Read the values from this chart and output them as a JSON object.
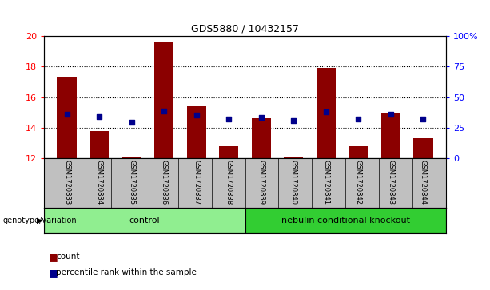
{
  "title": "GDS5880 / 10432157",
  "samples": [
    "GSM1720833",
    "GSM1720834",
    "GSM1720835",
    "GSM1720836",
    "GSM1720837",
    "GSM1720838",
    "GSM1720839",
    "GSM1720840",
    "GSM1720841",
    "GSM1720842",
    "GSM1720843",
    "GSM1720844"
  ],
  "bar_tops": [
    17.3,
    13.8,
    12.1,
    19.6,
    15.4,
    12.8,
    14.6,
    12.05,
    17.9,
    12.8,
    15.0,
    13.3
  ],
  "bar_base": 12.0,
  "percentile_values": [
    14.9,
    14.7,
    14.35,
    15.1,
    14.85,
    14.55,
    14.65,
    14.45,
    15.05,
    14.55,
    14.9,
    14.55
  ],
  "ylim_left": [
    12,
    20
  ],
  "ylim_right": [
    0,
    100
  ],
  "yticks_left": [
    12,
    14,
    16,
    18,
    20
  ],
  "yticks_right": [
    0,
    25,
    50,
    75,
    100
  ],
  "ytick_labels_right": [
    "0",
    "25",
    "50",
    "75",
    "100%"
  ],
  "bar_color": "#8B0000",
  "percentile_color": "#00008B",
  "ax_bg_color": "#ffffff",
  "group1_label": "control",
  "group2_label": "nebulin conditional knockout",
  "group1_indices": [
    0,
    1,
    2,
    3,
    4,
    5
  ],
  "group2_indices": [
    6,
    7,
    8,
    9,
    10,
    11
  ],
  "group1_bg": "#90EE90",
  "group2_bg": "#32CD32",
  "sample_bg": "#C0C0C0",
  "legend_count_label": "count",
  "legend_pct_label": "percentile rank within the sample",
  "genotype_label": "genotype/variation"
}
